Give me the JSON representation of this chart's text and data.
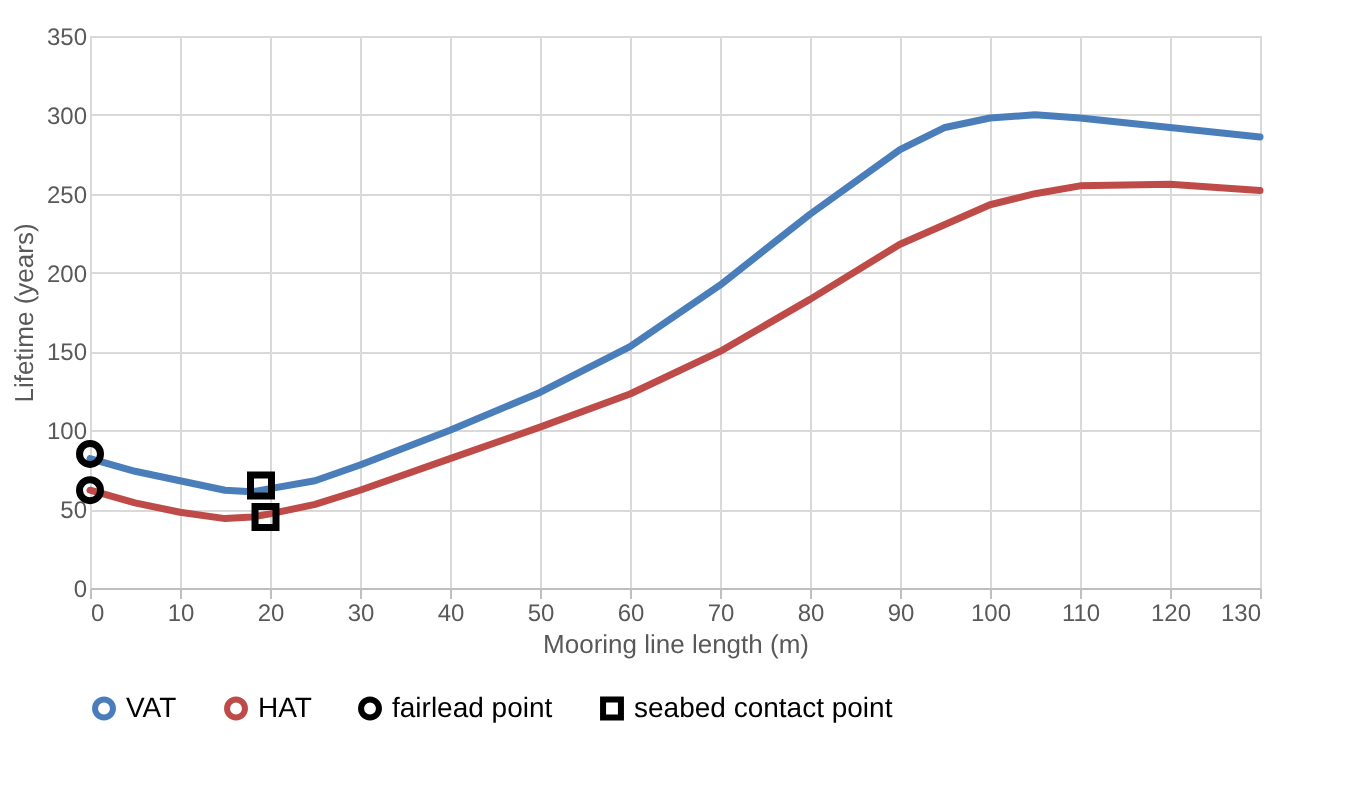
{
  "chart_data": {
    "type": "line",
    "xlabel": "Mooring line length (m)",
    "ylabel": "Lifetime (years)",
    "xlim": [
      0,
      130
    ],
    "xticks": [
      0,
      10,
      20,
      30,
      40,
      50,
      60,
      70,
      80,
      90,
      100,
      110,
      120,
      130
    ],
    "ylim": [
      0,
      350
    ],
    "yticks": [
      0,
      50,
      100,
      150,
      200,
      250,
      300,
      350
    ],
    "grid": true,
    "legend": "bottom",
    "line_style": "solid",
    "series": [
      {
        "name": "VAT",
        "marker": "none",
        "color": "#4a7ebb",
        "x": [
          0,
          5,
          10,
          15,
          18,
          20,
          25,
          30,
          40,
          50,
          60,
          70,
          80,
          90,
          95,
          100,
          105,
          110,
          120,
          130
        ],
        "values": [
          82,
          74,
          68,
          62,
          61,
          63,
          68,
          78,
          100,
          124,
          153,
          192,
          237,
          278,
          292,
          298,
          300,
          298,
          292,
          286
        ]
      },
      {
        "name": "HAT",
        "marker": "none",
        "color": "#be4b48",
        "x": [
          0,
          5,
          10,
          15,
          18,
          20,
          25,
          30,
          40,
          50,
          60,
          70,
          80,
          90,
          100,
          105,
          110,
          120,
          130
        ],
        "values": [
          62,
          54,
          48,
          44,
          45,
          47,
          53,
          62,
          82,
          102,
          123,
          150,
          183,
          218,
          243,
          250,
          255,
          256,
          252
        ]
      },
      {
        "name": "fairlead point",
        "type": "scatter",
        "marker": "circle",
        "color": "#000000",
        "x": [
          0,
          0
        ],
        "values": [
          85,
          62
        ]
      },
      {
        "name": "seabed contact point",
        "type": "scatter",
        "marker": "square",
        "color": "#000000",
        "x": [
          19,
          19.5
        ],
        "values": [
          65,
          45
        ]
      }
    ]
  }
}
